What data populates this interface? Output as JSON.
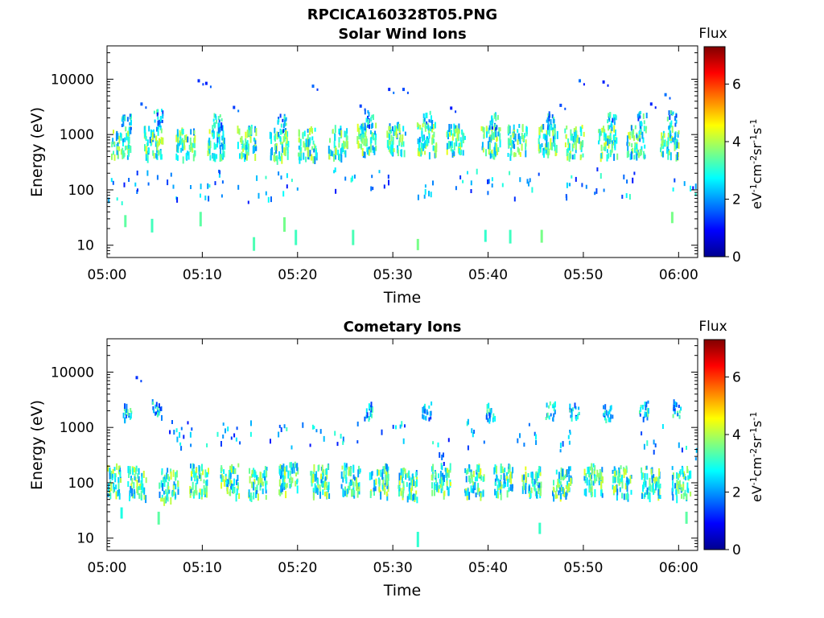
{
  "figure": {
    "title": "RPCICA160328T05.PNG"
  },
  "colorbar": {
    "label": "Flux",
    "unit_parts": [
      "eV",
      "-1",
      "cm",
      "-2",
      "sr",
      "-1",
      "s",
      "-1"
    ],
    "ticks": [
      "0",
      "2",
      "4",
      "6"
    ],
    "range": [
      0,
      7.3
    ],
    "colormap": [
      "#00008f",
      "#0000ff",
      "#0080ff",
      "#00ffff",
      "#80ff80",
      "#ffff00",
      "#ff8000",
      "#ff0000",
      "#800000"
    ]
  },
  "chart_data": [
    {
      "type": "heatmap",
      "title": "Solar Wind Ions",
      "xlabel": "Time",
      "ylabel": "Energy (eV)",
      "yscale": "log",
      "ylim": [
        6,
        40000
      ],
      "xlim": [
        "05:00",
        "06:02"
      ],
      "xticks": [
        "05:00",
        "05:10",
        "05:20",
        "05:30",
        "05:40",
        "05:50",
        "06:00"
      ],
      "yticks": [
        10,
        100,
        1000,
        10000
      ],
      "ytick_labels": [
        "10",
        "100",
        "1000",
        "10000"
      ],
      "grid": false,
      "bursts_core": [
        {
          "t": 1.4,
          "e": 800
        },
        {
          "t": 4.8,
          "e": 800
        },
        {
          "t": 8.2,
          "e": 750
        },
        {
          "t": 11.3,
          "e": 800
        },
        {
          "t": 14.6,
          "e": 800
        },
        {
          "t": 18.0,
          "e": 720
        },
        {
          "t": 21.0,
          "e": 750
        },
        {
          "t": 24.2,
          "e": 800
        },
        {
          "t": 27.2,
          "e": 900
        },
        {
          "t": 30.3,
          "e": 900
        },
        {
          "t": 33.5,
          "e": 900
        },
        {
          "t": 36.5,
          "e": 850
        },
        {
          "t": 40.2,
          "e": 850
        },
        {
          "t": 43.0,
          "e": 850
        },
        {
          "t": 46.2,
          "e": 900
        },
        {
          "t": 49.0,
          "e": 800
        },
        {
          "t": 52.5,
          "e": 800
        },
        {
          "t": 55.5,
          "e": 800
        },
        {
          "t": 59.0,
          "e": 800
        }
      ],
      "bursts_upper": [
        {
          "t": 2.0,
          "e": 1900
        },
        {
          "t": 5.3,
          "e": 2200
        },
        {
          "t": 11.6,
          "e": 1800
        },
        {
          "t": 18.3,
          "e": 1700
        },
        {
          "t": 27.4,
          "e": 2000
        },
        {
          "t": 33.6,
          "e": 2000
        },
        {
          "t": 40.5,
          "e": 1800
        },
        {
          "t": 46.5,
          "e": 1900
        },
        {
          "t": 52.9,
          "e": 1900
        },
        {
          "t": 56.1,
          "e": 1900
        },
        {
          "t": 59.2,
          "e": 2000
        }
      ],
      "scatter_mid": [
        {
          "t": 0.5,
          "e": 110
        },
        {
          "t": 3.0,
          "e": 150
        },
        {
          "t": 6.5,
          "e": 120
        },
        {
          "t": 9.5,
          "e": 130
        },
        {
          "t": 12.5,
          "e": 140
        },
        {
          "t": 16.0,
          "e": 110
        },
        {
          "t": 19.0,
          "e": 140
        },
        {
          "t": 25.0,
          "e": 160
        },
        {
          "t": 28.5,
          "e": 150
        },
        {
          "t": 33.0,
          "e": 100
        },
        {
          "t": 37.5,
          "e": 140
        },
        {
          "t": 41.0,
          "e": 130
        },
        {
          "t": 44.0,
          "e": 120
        },
        {
          "t": 48.0,
          "e": 110
        },
        {
          "t": 51.0,
          "e": 150
        },
        {
          "t": 55.0,
          "e": 120
        },
        {
          "t": 60.5,
          "e": 140
        }
      ],
      "scatter_high": [
        {
          "t": 9.5,
          "e": 10000
        },
        {
          "t": 10.3,
          "e": 9000
        },
        {
          "t": 21.5,
          "e": 8000
        },
        {
          "t": 29.5,
          "e": 7000
        },
        {
          "t": 31.0,
          "e": 7000
        },
        {
          "t": 49.5,
          "e": 10000
        },
        {
          "t": 52.0,
          "e": 9500
        },
        {
          "t": 58.5,
          "e": 5600
        },
        {
          "t": 3.5,
          "e": 3800
        },
        {
          "t": 13.2,
          "e": 3300
        },
        {
          "t": 26.5,
          "e": 3500
        },
        {
          "t": 36.0,
          "e": 3200
        },
        {
          "t": 47.5,
          "e": 3600
        },
        {
          "t": 57.0,
          "e": 3800
        }
      ],
      "low_lines": [
        {
          "t": 2.0,
          "e": 7.5
        },
        {
          "t": 9.5,
          "e": 7.5
        },
        {
          "t": 15.3,
          "e": 14
        },
        {
          "t": 19.7,
          "e": 19
        },
        {
          "t": 25.7,
          "e": 19
        },
        {
          "t": 32.5,
          "e": 13
        },
        {
          "t": 32.7,
          "e": 7.5
        },
        {
          "t": 39.6,
          "e": 19
        },
        {
          "t": 42.2,
          "e": 19
        },
        {
          "t": 45.5,
          "e": 19
        },
        {
          "t": 52.6,
          "e": 7.5
        },
        {
          "t": 54.7,
          "e": 7.5
        },
        {
          "t": 59.3,
          "e": 7.5
        },
        {
          "t": 1.8,
          "e": 35
        },
        {
          "t": 4.6,
          "e": 30
        },
        {
          "t": 9.7,
          "e": 40
        },
        {
          "t": 18.5,
          "e": 32
        },
        {
          "t": 59.2,
          "e": 40
        }
      ]
    },
    {
      "type": "heatmap",
      "title": "Cometary Ions",
      "xlabel": "Time",
      "ylabel": "Energy (eV)",
      "yscale": "log",
      "ylim": [
        6,
        40000
      ],
      "xlim": [
        "05:00",
        "06:02"
      ],
      "xticks": [
        "05:00",
        "05:10",
        "05:20",
        "05:30",
        "05:40",
        "05:50",
        "06:00"
      ],
      "yticks": [
        10,
        100,
        1000,
        10000
      ],
      "ytick_labels": [
        "10",
        "100",
        "1000",
        "10000"
      ],
      "grid": false,
      "bursts_core": [
        {
          "t": 0.4,
          "e": 120
        },
        {
          "t": 3.1,
          "e": 110
        },
        {
          "t": 6.4,
          "e": 100
        },
        {
          "t": 9.6,
          "e": 120
        },
        {
          "t": 12.8,
          "e": 120
        },
        {
          "t": 15.8,
          "e": 110
        },
        {
          "t": 19.0,
          "e": 130
        },
        {
          "t": 22.3,
          "e": 120
        },
        {
          "t": 25.5,
          "e": 130
        },
        {
          "t": 28.5,
          "e": 120
        },
        {
          "t": 31.5,
          "e": 100
        },
        {
          "t": 35.0,
          "e": 130
        },
        {
          "t": 38.5,
          "e": 120
        },
        {
          "t": 41.5,
          "e": 120
        },
        {
          "t": 44.5,
          "e": 110
        },
        {
          "t": 47.7,
          "e": 110
        },
        {
          "t": 51.0,
          "e": 120
        },
        {
          "t": 54.0,
          "e": 110
        },
        {
          "t": 57.0,
          "e": 110
        },
        {
          "t": 60.2,
          "e": 110
        }
      ],
      "bursts_upper": [
        {
          "t": 2.0,
          "e": 2000
        },
        {
          "t": 5.2,
          "e": 2300
        },
        {
          "t": 27.3,
          "e": 2200
        },
        {
          "t": 33.5,
          "e": 2100
        },
        {
          "t": 40.2,
          "e": 2000
        },
        {
          "t": 46.5,
          "e": 2100
        },
        {
          "t": 49.0,
          "e": 2200
        },
        {
          "t": 52.5,
          "e": 2000
        },
        {
          "t": 56.3,
          "e": 2200
        },
        {
          "t": 59.8,
          "e": 2300
        }
      ],
      "scatter_mid": [
        {
          "t": 8.5,
          "e": 800
        },
        {
          "t": 11.5,
          "e": 700
        },
        {
          "t": 14.0,
          "e": 900
        },
        {
          "t": 18.0,
          "e": 800
        },
        {
          "t": 21.5,
          "e": 900
        },
        {
          "t": 25.0,
          "e": 850
        },
        {
          "t": 30.0,
          "e": 750
        },
        {
          "t": 39.0,
          "e": 800
        },
        {
          "t": 44.0,
          "e": 850
        },
        {
          "t": 57.0,
          "e": 700
        },
        {
          "t": 61.0,
          "e": 350
        },
        {
          "t": 35.0,
          "e": 400
        },
        {
          "t": 7.5,
          "e": 1100
        },
        {
          "t": 47.5,
          "e": 700
        }
      ],
      "scatter_high": [
        {
          "t": 3.0,
          "e": 8500
        }
      ],
      "low_lines": [
        {
          "t": 2.0,
          "e": 7.5
        },
        {
          "t": 32.5,
          "e": 13
        },
        {
          "t": 32.7,
          "e": 7.5
        },
        {
          "t": 45.3,
          "e": 19
        },
        {
          "t": 1.4,
          "e": 36
        },
        {
          "t": 5.3,
          "e": 30
        },
        {
          "t": 60.7,
          "e": 30
        }
      ]
    }
  ]
}
